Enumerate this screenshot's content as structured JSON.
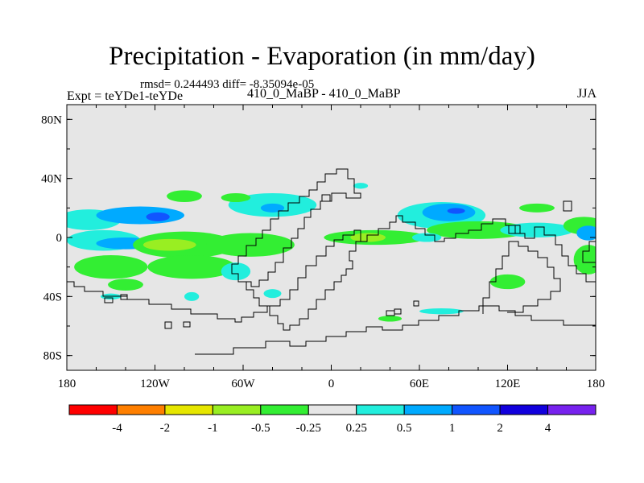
{
  "chart_data": {
    "type": "heatmap",
    "title": "Precipitation - Evaporation (in mm/day)",
    "stats_text": "rmsd= 0.244493 diff= -8.35094e-05",
    "left_label": "Expt = teYDe1-teYDe",
    "center_label": "410_0_MaBP - 410_0_MaBP",
    "right_label": "JJA",
    "x_ticks": [
      "180",
      "120W",
      "60W",
      "0",
      "60E",
      "120E",
      "180"
    ],
    "y_ticks": [
      "80N",
      "40N",
      "0",
      "40S",
      "80S"
    ],
    "x_range": [
      -180,
      180
    ],
    "y_range": [
      -90,
      90
    ],
    "colorbar": {
      "colors": [
        "#ff0000",
        "#ff7f00",
        "#e6e600",
        "#99ee22",
        "#33ee33",
        "#e6e6e6",
        "#22eedd",
        "#00aaff",
        "#1155ff",
        "#1100dd",
        "#7722ee"
      ],
      "labels": [
        "-4",
        "-2",
        "-1",
        "-0.5",
        "-0.25",
        "0.25",
        "0.5",
        "1",
        "2",
        "4"
      ]
    },
    "background_color": "#e6e6e6",
    "patches": [
      {
        "lon": -165,
        "lat": 12,
        "rlon": 22,
        "rlat": 7,
        "level": 6
      },
      {
        "lon": -130,
        "lat": 15,
        "rlon": 30,
        "rlat": 6,
        "level": 7
      },
      {
        "lon": -118,
        "lat": 14,
        "rlon": 8,
        "rlat": 3,
        "level": 8
      },
      {
        "lon": -155,
        "lat": -2,
        "rlon": 25,
        "rlat": 7,
        "level": 6
      },
      {
        "lon": -140,
        "lat": -4,
        "rlon": 20,
        "rlat": 4,
        "level": 7
      },
      {
        "lon": -150,
        "lat": -20,
        "rlon": 25,
        "rlat": 8,
        "level": 4
      },
      {
        "lon": -100,
        "lat": -5,
        "rlon": 35,
        "rlat": 9,
        "level": 4
      },
      {
        "lon": -110,
        "lat": -5,
        "rlon": 18,
        "rlat": 4,
        "level": 3
      },
      {
        "lon": -95,
        "lat": -20,
        "rlon": 30,
        "rlat": 8,
        "level": 4
      },
      {
        "lon": -65,
        "lat": -23,
        "rlon": 10,
        "rlat": 6,
        "level": 6
      },
      {
        "lon": -55,
        "lat": -5,
        "rlon": 30,
        "rlat": 8,
        "level": 4
      },
      {
        "lon": -40,
        "lat": 22,
        "rlon": 30,
        "rlat": 8,
        "level": 6
      },
      {
        "lon": -40,
        "lat": 20,
        "rlon": 8,
        "rlat": 3,
        "level": 7
      },
      {
        "lon": -100,
        "lat": 28,
        "rlon": 12,
        "rlat": 4,
        "level": 4
      },
      {
        "lon": -65,
        "lat": 27,
        "rlon": 10,
        "rlat": 3,
        "level": 4
      },
      {
        "lon": -140,
        "lat": -32,
        "rlon": 12,
        "rlat": 4,
        "level": 4
      },
      {
        "lon": -40,
        "lat": -38,
        "rlon": 6,
        "rlat": 3,
        "level": 6
      },
      {
        "lon": -95,
        "lat": -40,
        "rlon": 5,
        "rlat": 3,
        "level": 6
      },
      {
        "lon": -150,
        "lat": -40,
        "rlon": 7,
        "rlat": 2,
        "level": 6
      },
      {
        "lon": 30,
        "lat": 0,
        "rlon": 35,
        "rlat": 5,
        "level": 4
      },
      {
        "lon": 25,
        "lat": 0,
        "rlon": 12,
        "rlat": 3,
        "level": 3
      },
      {
        "lon": 75,
        "lat": 15,
        "rlon": 30,
        "rlat": 9,
        "level": 6
      },
      {
        "lon": 80,
        "lat": 17,
        "rlon": 18,
        "rlat": 6,
        "level": 7
      },
      {
        "lon": 85,
        "lat": 18,
        "rlon": 6,
        "rlat": 2,
        "level": 8
      },
      {
        "lon": 100,
        "lat": 5,
        "rlon": 35,
        "rlat": 6,
        "level": 4
      },
      {
        "lon": 140,
        "lat": 5,
        "rlon": 25,
        "rlat": 5,
        "level": 6
      },
      {
        "lon": 172,
        "lat": 8,
        "rlon": 14,
        "rlat": 6,
        "level": 4
      },
      {
        "lon": 175,
        "lat": 3,
        "rlon": 8,
        "rlat": 5,
        "level": 7
      },
      {
        "lon": 175,
        "lat": -15,
        "rlon": 10,
        "rlat": 10,
        "level": 4
      },
      {
        "lon": 120,
        "lat": -30,
        "rlon": 12,
        "rlat": 5,
        "level": 4
      },
      {
        "lon": 65,
        "lat": 0,
        "rlon": 10,
        "rlat": 3,
        "level": 6
      },
      {
        "lon": 20,
        "lat": 35,
        "rlon": 5,
        "rlat": 2,
        "level": 6
      },
      {
        "lon": 140,
        "lat": 20,
        "rlon": 12,
        "rlat": 3,
        "level": 4
      },
      {
        "lon": 75,
        "lat": -50,
        "rlon": 15,
        "rlat": 2,
        "level": 6
      },
      {
        "lon": 40,
        "lat": -55,
        "rlon": 8,
        "rlat": 2,
        "level": 4
      }
    ]
  }
}
